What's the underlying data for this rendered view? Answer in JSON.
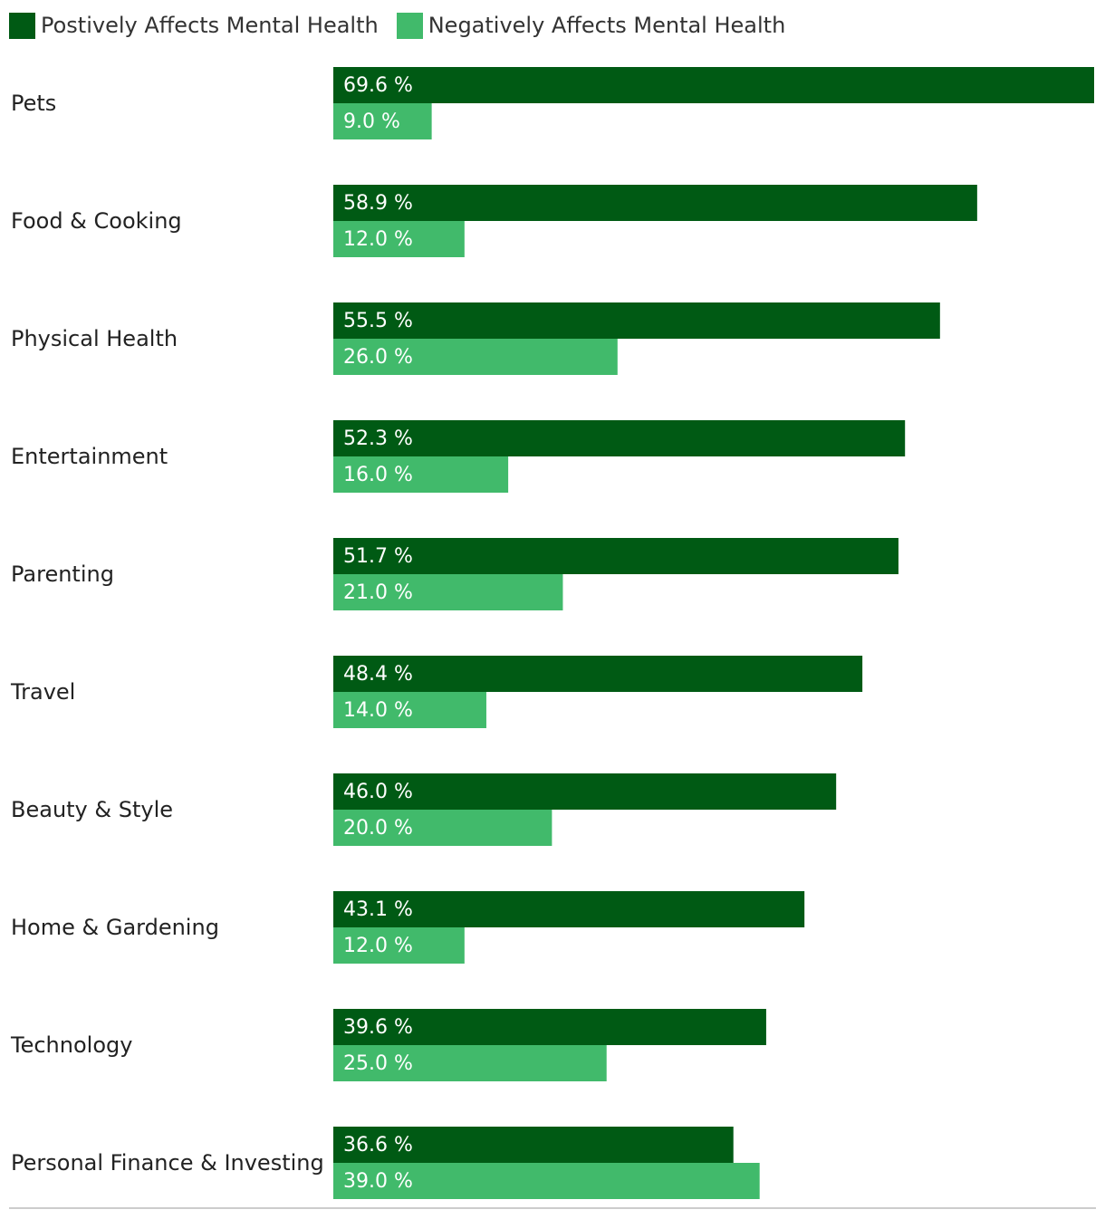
{
  "chart_data": {
    "type": "bar",
    "orientation": "horizontal",
    "title": "",
    "xlabel": "",
    "ylabel": "",
    "xlim": [
      0,
      69.6
    ],
    "grid": false,
    "legend_position": "top-left",
    "categories": [
      "Pets",
      "Food & Cooking",
      "Physical Health",
      "Entertainment",
      "Parenting",
      "Travel",
      "Beauty & Style",
      "Home & Gardening",
      "Technology",
      "Personal Finance & Investing"
    ],
    "series": [
      {
        "name": "Postively Affects Mental Health",
        "color": "#005a14",
        "values": [
          69.6,
          58.9,
          55.5,
          52.3,
          51.7,
          48.4,
          46.0,
          43.1,
          39.6,
          36.6
        ],
        "labels": [
          "69.6 %",
          "58.9 %",
          "55.5 %",
          "52.3 %",
          "51.7 %",
          "48.4 %",
          "46.0 %",
          "43.1 %",
          "39.6 %",
          "36.6 %"
        ]
      },
      {
        "name": "Negatively Affects Mental Health",
        "color": "#41ba6b",
        "values": [
          9.0,
          12.0,
          26.0,
          16.0,
          21.0,
          14.0,
          20.0,
          12.0,
          25.0,
          39.0
        ],
        "labels": [
          "9.0 %",
          "12.0 %",
          "26.0 %",
          "16.0 %",
          "21.0 %",
          "14.0 %",
          "20.0 %",
          "12.0 %",
          "25.0 %",
          "39.0 %"
        ]
      }
    ]
  }
}
